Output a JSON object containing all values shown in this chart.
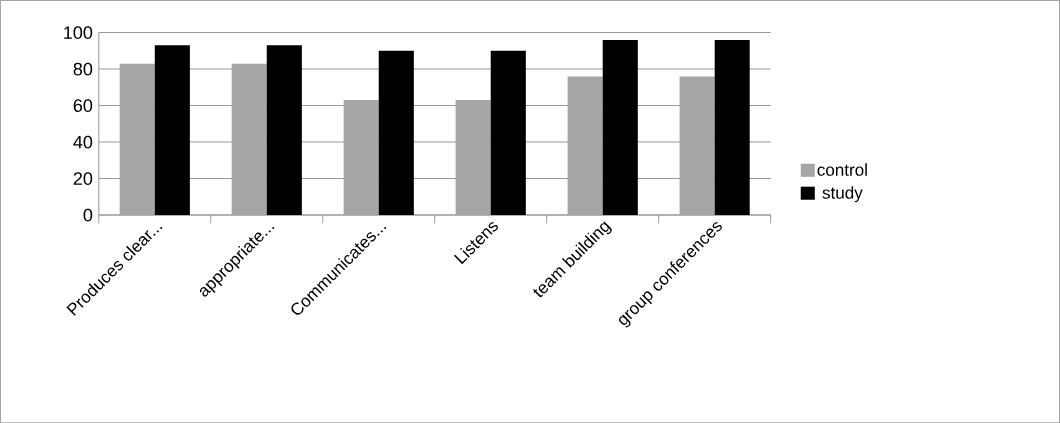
{
  "chart_data": {
    "type": "bar",
    "categories": [
      "Produces clear...",
      "appropriate...",
      "Communicates...",
      "Listens",
      "team building",
      "group conferences"
    ],
    "series": [
      {
        "name": "control",
        "color": "#a6a6a6",
        "values": [
          83,
          83,
          63,
          63,
          76,
          76
        ]
      },
      {
        "name": "study",
        "color": "#000000",
        "values": [
          93,
          93,
          90,
          90,
          96,
          96
        ]
      }
    ],
    "ylim": [
      0,
      100
    ],
    "yticks": [
      0,
      20,
      40,
      60,
      80,
      100
    ],
    "grid": "y",
    "legend": "right"
  }
}
